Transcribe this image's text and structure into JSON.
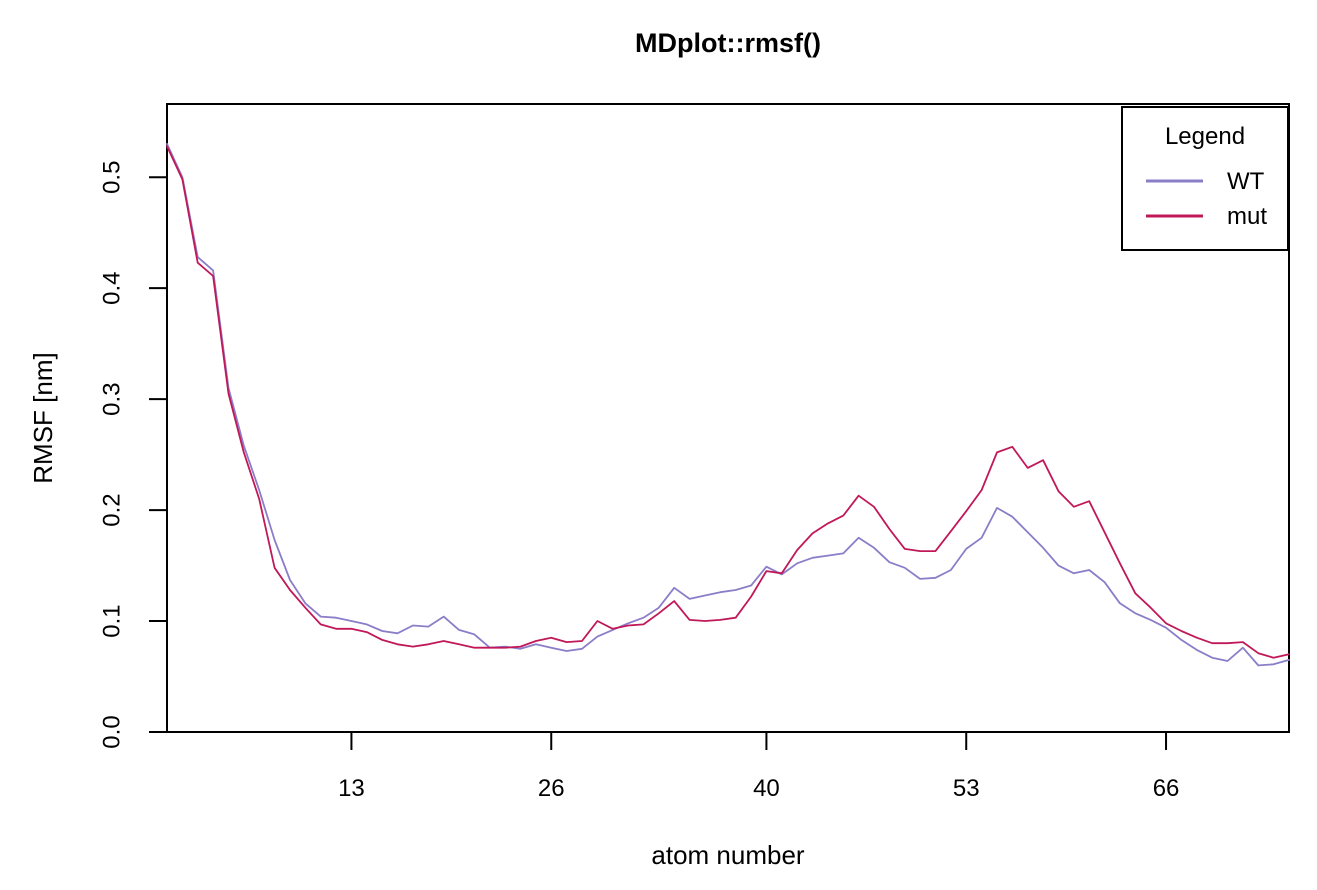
{
  "chart_data": {
    "type": "line",
    "title": "MDplot::rmsf()",
    "xlabel": "atom number",
    "ylabel": "RMSF [nm]",
    "legend_title": "Legend",
    "legend_position": "top-right",
    "grid": false,
    "xlim": [
      1,
      74
    ],
    "ylim": [
      0,
      0.566
    ],
    "x_ticks": [
      13,
      26,
      40,
      53,
      66
    ],
    "y_ticks": [
      0.0,
      0.1,
      0.2,
      0.3,
      0.4,
      0.5
    ],
    "x_description": "atom number, one point per atom from 1 to 74",
    "series": [
      {
        "name": "WT",
        "color": "#8B7DC8",
        "values": [
          0.53,
          0.5,
          0.428,
          0.416,
          0.31,
          0.258,
          0.218,
          0.173,
          0.137,
          0.116,
          0.104,
          0.103,
          0.1,
          0.097,
          0.091,
          0.089,
          0.096,
          0.095,
          0.104,
          0.092,
          0.088,
          0.076,
          0.077,
          0.075,
          0.079,
          0.076,
          0.073,
          0.075,
          0.086,
          0.092,
          0.098,
          0.103,
          0.112,
          0.13,
          0.12,
          0.123,
          0.126,
          0.128,
          0.132,
          0.149,
          0.142,
          0.152,
          0.157,
          0.159,
          0.161,
          0.175,
          0.166,
          0.153,
          0.148,
          0.138,
          0.139,
          0.146,
          0.165,
          0.175,
          0.202,
          0.194,
          0.18,
          0.166,
          0.15,
          0.143,
          0.146,
          0.135,
          0.116,
          0.107,
          0.101,
          0.094,
          0.083,
          0.074,
          0.067,
          0.064,
          0.076,
          0.06,
          0.061,
          0.065
        ]
      },
      {
        "name": "mut",
        "color": "#C01858",
        "values": [
          0.528,
          0.498,
          0.423,
          0.411,
          0.305,
          0.252,
          0.21,
          0.148,
          0.128,
          0.112,
          0.097,
          0.093,
          0.093,
          0.09,
          0.083,
          0.079,
          0.077,
          0.079,
          0.082,
          0.079,
          0.076,
          0.076,
          0.076,
          0.077,
          0.082,
          0.085,
          0.081,
          0.082,
          0.1,
          0.093,
          0.096,
          0.097,
          0.107,
          0.118,
          0.101,
          0.1,
          0.101,
          0.103,
          0.122,
          0.145,
          0.143,
          0.164,
          0.179,
          0.188,
          0.195,
          0.213,
          0.203,
          0.183,
          0.165,
          0.163,
          0.163,
          0.181,
          0.199,
          0.218,
          0.252,
          0.257,
          0.238,
          0.245,
          0.217,
          0.203,
          0.208,
          0.18,
          0.152,
          0.125,
          0.112,
          0.098,
          0.091,
          0.085,
          0.08,
          0.08,
          0.081,
          0.071,
          0.067,
          0.07
        ]
      }
    ]
  },
  "colors": {
    "background": "#FFFFFF",
    "axis": "#000000",
    "wt_line": "#8B7DC8",
    "mut_line": "#C01858"
  }
}
